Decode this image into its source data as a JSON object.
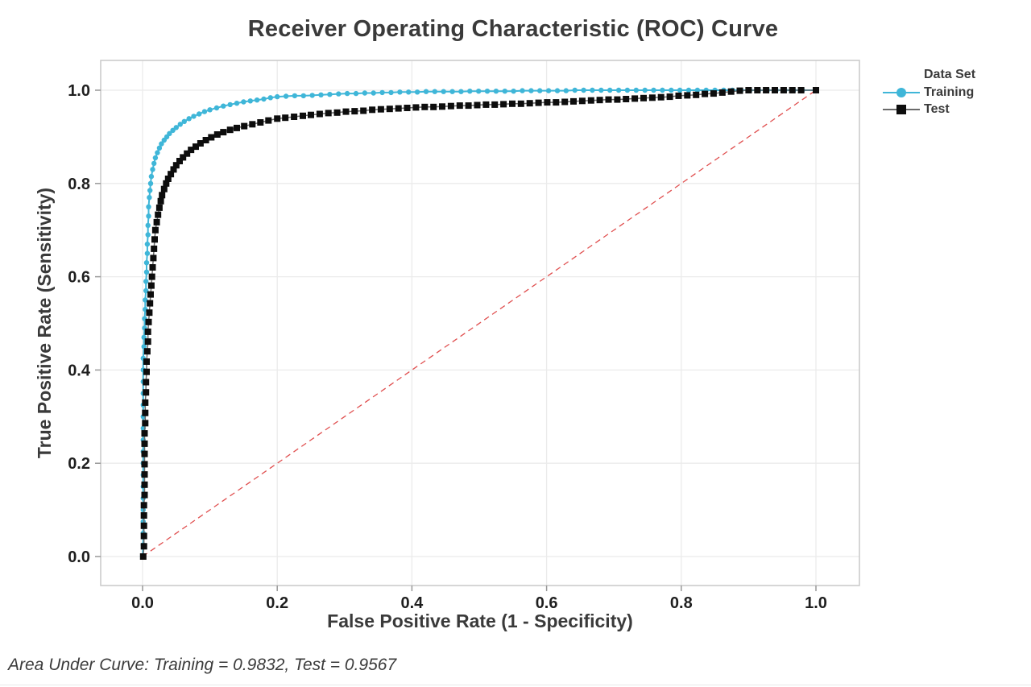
{
  "title": "Receiver Operating Characteristic (ROC) Curve",
  "footer": "Area Under Curve: Training = 0.9832, Test = 0.9567",
  "legend": {
    "title": "Data Set",
    "entries": [
      {
        "label": "Training",
        "marker": "circle",
        "marker_color": "#3fb6d8",
        "line_color": "#3fb6d8"
      },
      {
        "label": "Test",
        "marker": "square",
        "marker_color": "#0d0d0d",
        "line_color": "#6a6a6a"
      }
    ]
  },
  "chart_data": {
    "type": "line",
    "title": "Receiver Operating Characteristic (ROC) Curve",
    "xlabel": "False Positive Rate (1 - Specificity)",
    "ylabel": "True Positive Rate (Sensitivity)",
    "xlim": [
      0,
      1
    ],
    "ylim": [
      0,
      1
    ],
    "grid": true,
    "legend_position": "right",
    "legend_title": "Data Set",
    "xticks": {
      "values": [
        0,
        0.2,
        0.4,
        0.6,
        0.8,
        1
      ],
      "labels": [
        "0.0",
        "0.2",
        "0.4",
        "0.6",
        "0.8",
        "1.0"
      ]
    },
    "yticks": {
      "values": [
        0,
        0.2,
        0.4,
        0.6,
        0.8,
        1
      ],
      "labels": [
        "0.0",
        "0.2",
        "0.4",
        "0.6",
        "0.8",
        "1.0"
      ]
    },
    "reference_line": {
      "from": [
        0,
        0
      ],
      "to": [
        1,
        1
      ],
      "style": "dashed",
      "color": "#e04f4f"
    },
    "annotation": "Area Under Curve: Training = 0.9832, Test = 0.9567",
    "series": [
      {
        "name": "Training",
        "auc": 0.9832,
        "marker": "circle",
        "marker_color": "#3fb6d8",
        "line_color": "#3fb6d8",
        "points": [
          [
            0,
            0
          ],
          [
            0.001,
            0.025
          ],
          [
            0.001,
            0.05
          ],
          [
            0.001,
            0.075
          ],
          [
            0.001,
            0.1
          ],
          [
            0.001,
            0.125
          ],
          [
            0.001,
            0.15
          ],
          [
            0.001,
            0.175
          ],
          [
            0.001,
            0.2
          ],
          [
            0.001,
            0.225
          ],
          [
            0.001,
            0.25
          ],
          [
            0.001,
            0.275
          ],
          [
            0.001,
            0.3
          ],
          [
            0.001,
            0.325
          ],
          [
            0.001,
            0.35
          ],
          [
            0.001,
            0.375
          ],
          [
            0.001,
            0.4
          ],
          [
            0.001,
            0.425
          ],
          [
            0.002,
            0.45
          ],
          [
            0.002,
            0.47
          ],
          [
            0.003,
            0.49
          ],
          [
            0.003,
            0.51
          ],
          [
            0.004,
            0.53
          ],
          [
            0.004,
            0.55
          ],
          [
            0.005,
            0.57
          ],
          [
            0.005,
            0.59
          ],
          [
            0.006,
            0.61
          ],
          [
            0.006,
            0.63
          ],
          [
            0.007,
            0.65
          ],
          [
            0.007,
            0.67
          ],
          [
            0.008,
            0.69
          ],
          [
            0.008,
            0.71
          ],
          [
            0.009,
            0.73
          ],
          [
            0.009,
            0.75
          ],
          [
            0.01,
            0.77
          ],
          [
            0.011,
            0.785
          ],
          [
            0.012,
            0.8
          ],
          [
            0.013,
            0.815
          ],
          [
            0.015,
            0.83
          ],
          [
            0.017,
            0.843
          ],
          [
            0.019,
            0.855
          ],
          [
            0.022,
            0.866
          ],
          [
            0.025,
            0.876
          ],
          [
            0.028,
            0.885
          ],
          [
            0.032,
            0.893
          ],
          [
            0.036,
            0.9
          ],
          [
            0.04,
            0.907
          ],
          [
            0.045,
            0.914
          ],
          [
            0.05,
            0.92
          ],
          [
            0.056,
            0.927
          ],
          [
            0.062,
            0.933
          ],
          [
            0.069,
            0.939
          ],
          [
            0.076,
            0.944
          ],
          [
            0.084,
            0.949
          ],
          [
            0.092,
            0.954
          ],
          [
            0.1,
            0.958
          ],
          [
            0.11,
            0.962
          ],
          [
            0.12,
            0.966
          ],
          [
            0.13,
            0.969
          ],
          [
            0.14,
            0.972
          ],
          [
            0.15,
            0.975
          ],
          [
            0.16,
            0.977
          ],
          [
            0.17,
            0.979
          ],
          [
            0.18,
            0.981
          ],
          [
            0.19,
            0.984
          ],
          [
            0.2,
            0.986
          ],
          [
            0.213,
            0.987
          ],
          [
            0.226,
            0.988
          ],
          [
            0.239,
            0.988
          ],
          [
            0.252,
            0.989
          ],
          [
            0.265,
            0.99
          ],
          [
            0.278,
            0.991
          ],
          [
            0.291,
            0.992
          ],
          [
            0.304,
            0.993
          ],
          [
            0.317,
            0.993
          ],
          [
            0.33,
            0.994
          ],
          [
            0.343,
            0.994
          ],
          [
            0.356,
            0.995
          ],
          [
            0.369,
            0.995
          ],
          [
            0.382,
            0.996
          ],
          [
            0.395,
            0.996
          ],
          [
            0.408,
            0.996
          ],
          [
            0.421,
            0.997
          ],
          [
            0.434,
            0.997
          ],
          [
            0.447,
            0.997
          ],
          [
            0.46,
            0.997
          ],
          [
            0.473,
            0.997
          ],
          [
            0.486,
            0.998
          ],
          [
            0.499,
            0.998
          ],
          [
            0.512,
            0.998
          ],
          [
            0.525,
            0.998
          ],
          [
            0.538,
            0.998
          ],
          [
            0.551,
            0.998
          ],
          [
            0.564,
            0.999
          ],
          [
            0.577,
            0.999
          ],
          [
            0.59,
            0.999
          ],
          [
            0.603,
            0.999
          ],
          [
            0.616,
            0.999
          ],
          [
            0.629,
            0.999
          ],
          [
            0.642,
            1
          ],
          [
            0.655,
            1
          ],
          [
            0.668,
            1
          ],
          [
            0.681,
            1
          ],
          [
            0.694,
            1
          ],
          [
            0.707,
            1
          ],
          [
            0.72,
            1
          ],
          [
            0.733,
            1
          ],
          [
            0.746,
            1
          ],
          [
            0.759,
            1
          ],
          [
            0.772,
            1
          ],
          [
            0.785,
            1
          ],
          [
            0.798,
            1
          ],
          [
            0.811,
            1
          ],
          [
            0.824,
            1
          ],
          [
            0.837,
            1
          ],
          [
            0.85,
            1
          ],
          [
            0.863,
            1
          ],
          [
            0.876,
            1
          ],
          [
            0.889,
            1
          ],
          [
            0.902,
            1
          ],
          [
            0.915,
            1
          ],
          [
            0.928,
            1
          ],
          [
            0.941,
            1
          ],
          [
            0.954,
            1
          ],
          [
            0.967,
            1
          ],
          [
            0.98,
            1
          ],
          [
            1,
            1
          ]
        ]
      },
      {
        "name": "Test",
        "auc": 0.9567,
        "marker": "square",
        "marker_color": "#0d0d0d",
        "line_color": "#6a6a6a",
        "points": [
          [
            0.001,
            0
          ],
          [
            0.002,
            0.022
          ],
          [
            0.002,
            0.044
          ],
          [
            0.002,
            0.066
          ],
          [
            0.002,
            0.088
          ],
          [
            0.002,
            0.11
          ],
          [
            0.003,
            0.132
          ],
          [
            0.003,
            0.154
          ],
          [
            0.003,
            0.176
          ],
          [
            0.003,
            0.198
          ],
          [
            0.003,
            0.22
          ],
          [
            0.003,
            0.242
          ],
          [
            0.003,
            0.264
          ],
          [
            0.004,
            0.286
          ],
          [
            0.004,
            0.308
          ],
          [
            0.004,
            0.33
          ],
          [
            0.005,
            0.352
          ],
          [
            0.005,
            0.374
          ],
          [
            0.006,
            0.396
          ],
          [
            0.006,
            0.418
          ],
          [
            0.007,
            0.44
          ],
          [
            0.008,
            0.461
          ],
          [
            0.008,
            0.482
          ],
          [
            0.009,
            0.503
          ],
          [
            0.01,
            0.523
          ],
          [
            0.011,
            0.543
          ],
          [
            0.012,
            0.562
          ],
          [
            0.013,
            0.581
          ],
          [
            0.014,
            0.6
          ],
          [
            0.015,
            0.62
          ],
          [
            0.016,
            0.64
          ],
          [
            0.017,
            0.66
          ],
          [
            0.018,
            0.68
          ],
          [
            0.019,
            0.7
          ],
          [
            0.021,
            0.717
          ],
          [
            0.023,
            0.733
          ],
          [
            0.025,
            0.748
          ],
          [
            0.027,
            0.762
          ],
          [
            0.029,
            0.775
          ],
          [
            0.032,
            0.788
          ],
          [
            0.035,
            0.8
          ],
          [
            0.038,
            0.81
          ],
          [
            0.042,
            0.82
          ],
          [
            0.046,
            0.83
          ],
          [
            0.05,
            0.839
          ],
          [
            0.055,
            0.848
          ],
          [
            0.06,
            0.856
          ],
          [
            0.066,
            0.864
          ],
          [
            0.072,
            0.872
          ],
          [
            0.079,
            0.879
          ],
          [
            0.086,
            0.886
          ],
          [
            0.094,
            0.893
          ],
          [
            0.102,
            0.899
          ],
          [
            0.111,
            0.905
          ],
          [
            0.12,
            0.91
          ],
          [
            0.13,
            0.915
          ],
          [
            0.14,
            0.919
          ],
          [
            0.151,
            0.923
          ],
          [
            0.163,
            0.927
          ],
          [
            0.175,
            0.931
          ],
          [
            0.187,
            0.935
          ],
          [
            0.2,
            0.939
          ],
          [
            0.212,
            0.941
          ],
          [
            0.225,
            0.943
          ],
          [
            0.238,
            0.945
          ],
          [
            0.25,
            0.947
          ],
          [
            0.263,
            0.949
          ],
          [
            0.276,
            0.951
          ],
          [
            0.289,
            0.952
          ],
          [
            0.302,
            0.954
          ],
          [
            0.315,
            0.955
          ],
          [
            0.328,
            0.956
          ],
          [
            0.341,
            0.958
          ],
          [
            0.354,
            0.959
          ],
          [
            0.367,
            0.96
          ],
          [
            0.38,
            0.961
          ],
          [
            0.393,
            0.962
          ],
          [
            0.406,
            0.963
          ],
          [
            0.419,
            0.964
          ],
          [
            0.432,
            0.964
          ],
          [
            0.445,
            0.965
          ],
          [
            0.458,
            0.966
          ],
          [
            0.471,
            0.967
          ],
          [
            0.484,
            0.967
          ],
          [
            0.497,
            0.968
          ],
          [
            0.51,
            0.969
          ],
          [
            0.523,
            0.969
          ],
          [
            0.536,
            0.97
          ],
          [
            0.549,
            0.971
          ],
          [
            0.562,
            0.971
          ],
          [
            0.575,
            0.972
          ],
          [
            0.588,
            0.973
          ],
          [
            0.601,
            0.974
          ],
          [
            0.614,
            0.974
          ],
          [
            0.627,
            0.975
          ],
          [
            0.64,
            0.976
          ],
          [
            0.653,
            0.977
          ],
          [
            0.666,
            0.978
          ],
          [
            0.679,
            0.979
          ],
          [
            0.692,
            0.98
          ],
          [
            0.705,
            0.98
          ],
          [
            0.718,
            0.981
          ],
          [
            0.731,
            0.982
          ],
          [
            0.744,
            0.983
          ],
          [
            0.757,
            0.984
          ],
          [
            0.77,
            0.985
          ],
          [
            0.783,
            0.986
          ],
          [
            0.796,
            0.988
          ],
          [
            0.809,
            0.989
          ],
          [
            0.822,
            0.99
          ],
          [
            0.835,
            0.992
          ],
          [
            0.848,
            0.993
          ],
          [
            0.861,
            0.995
          ],
          [
            0.874,
            0.997
          ],
          [
            0.887,
            0.999
          ],
          [
            0.9,
            1
          ],
          [
            0.913,
            1
          ],
          [
            0.926,
            1
          ],
          [
            0.939,
            1
          ],
          [
            0.952,
            1
          ],
          [
            0.965,
            1
          ],
          [
            0.978,
            1
          ],
          [
            1,
            1
          ]
        ]
      }
    ]
  },
  "colors": {
    "training": "#3fb6d8",
    "test": "#0d0d0d",
    "test_line": "#6a6a6a",
    "reference": "#e04f4f",
    "grid": "#ebebeb",
    "frame": "#c9c9c9",
    "tick": "#999999",
    "text": "#3a3a3a"
  }
}
